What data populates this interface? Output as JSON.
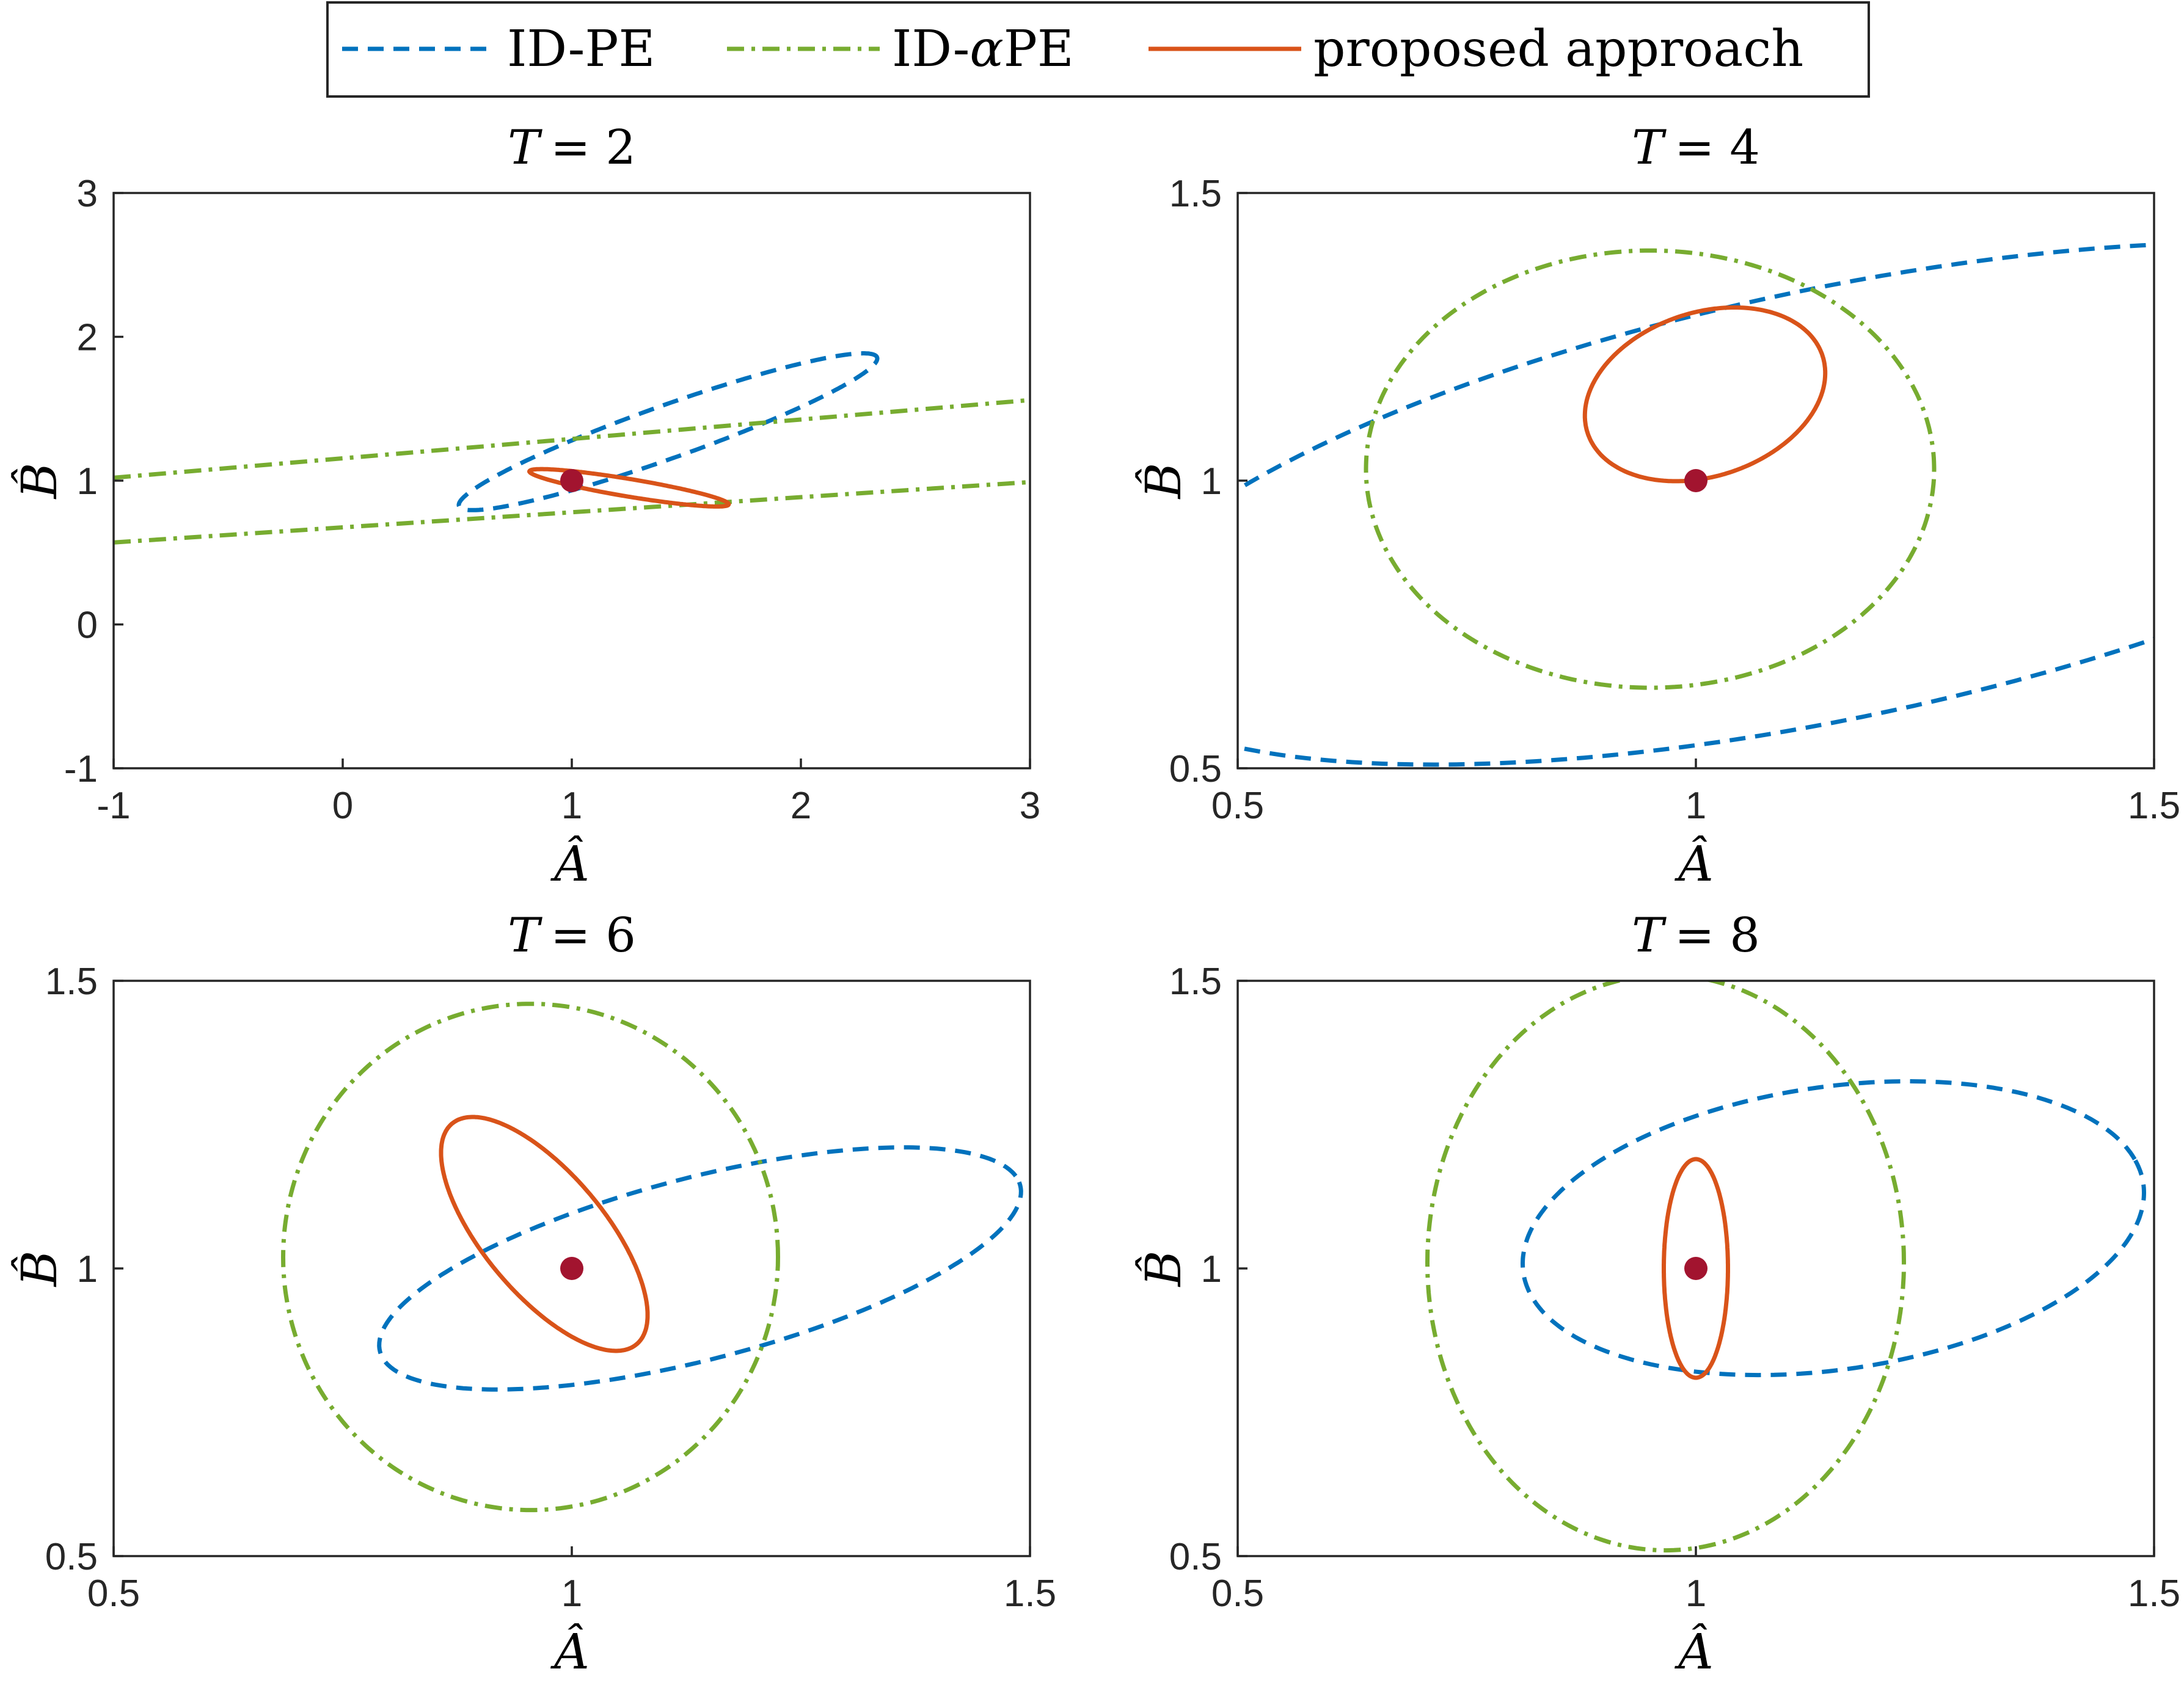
{
  "colors": {
    "id_pe": "#0072BD",
    "id_alpha_pe": "#77AC30",
    "proposed": "#D95319",
    "true_point": "#A2142F",
    "axis": "#262626"
  },
  "legend": {
    "entries": [
      {
        "label": "ID-PE",
        "style": "dashed",
        "color": "#0072BD"
      },
      {
        "label_prefix": "ID-",
        "label_symbol": "α",
        "label_suffix": "PE",
        "style": "dashdot",
        "color": "#77AC30"
      },
      {
        "label": "proposed approach",
        "style": "solid",
        "color": "#D95319"
      }
    ]
  },
  "chart_data": [
    {
      "type": "line",
      "title_var": "T",
      "title_eq": "= 2",
      "xlabel": "Â",
      "ylabel": "B̂",
      "xlim": [
        -1,
        3
      ],
      "ylim": [
        -1,
        3
      ],
      "xticks": [
        -1,
        0,
        1,
        2,
        3
      ],
      "xtick_labels": [
        "-1",
        "0",
        "1",
        "2",
        "3"
      ],
      "yticks": [
        -1,
        0,
        1,
        2,
        3
      ],
      "ytick_labels": [
        "-1",
        "0",
        "1",
        "2",
        "3"
      ],
      "true_point": [
        1,
        1
      ],
      "series": [
        {
          "name": "ID-PE",
          "shape": "ellipse",
          "center": [
            1.42,
            1.34
          ],
          "semi_axes": [
            1.05,
            0.17
          ],
          "angle_deg": 30
        },
        {
          "name": "ID-αPE",
          "shape": "parallel_lines",
          "lines": [
            {
              "y_at_xmin": 1.02,
              "y_at_xmax": 1.56
            },
            {
              "y_at_xmin": 0.57,
              "y_at_xmax": 0.99
            }
          ]
        },
        {
          "name": "proposed approach",
          "shape": "ellipse",
          "center": [
            1.25,
            0.95
          ],
          "semi_axes": [
            0.45,
            0.06
          ],
          "angle_deg": -15
        }
      ]
    },
    {
      "type": "line",
      "title_var": "T",
      "title_eq": "= 4",
      "xlabel": "Â",
      "ylabel": "B̂",
      "xlim": [
        0.5,
        1.5
      ],
      "ylim": [
        0.5,
        1.5
      ],
      "xticks": [
        0.5,
        1,
        1.5
      ],
      "xtick_labels": [
        "0.5",
        "1",
        "1.5"
      ],
      "yticks": [
        0.5,
        1,
        1.5
      ],
      "ytick_labels": [
        "0.5",
        "1",
        "1.5"
      ],
      "true_point": [
        1,
        1
      ],
      "series": [
        {
          "name": "ID-PE",
          "shape": "ellipse",
          "center": [
            1.15,
            0.96
          ],
          "semi_axes": [
            0.85,
            0.36
          ],
          "angle_deg": 21
        },
        {
          "name": "ID-αPE",
          "shape": "ellipse",
          "center": [
            0.95,
            1.02
          ],
          "semi_axes": [
            0.31,
            0.38
          ],
          "angle_deg": 0
        },
        {
          "name": "proposed approach",
          "shape": "ellipse",
          "center": [
            1.01,
            1.15
          ],
          "semi_axes": [
            0.12,
            0.16
          ],
          "angle_deg": -30
        }
      ]
    },
    {
      "type": "line",
      "title_var": "T",
      "title_eq": "= 6",
      "xlabel": "Â",
      "ylabel": "B̂",
      "xlim": [
        0.5,
        1.5
      ],
      "ylim": [
        0.5,
        1.5
      ],
      "xticks": [
        0.5,
        1,
        1.5
      ],
      "xtick_labels": [
        "0.5",
        "1",
        "1.5"
      ],
      "yticks": [
        0.5,
        1,
        1.5
      ],
      "ytick_labels": [
        "0.5",
        "1",
        "1.5"
      ],
      "true_point": [
        1,
        1
      ],
      "series": [
        {
          "name": "ID-PE",
          "shape": "ellipse",
          "center": [
            1.14,
            1.0
          ],
          "semi_axes": [
            0.38,
            0.15
          ],
          "angle_deg": 25
        },
        {
          "name": "ID-αPE",
          "shape": "ellipse",
          "center": [
            0.955,
            1.02
          ],
          "semi_axes": [
            0.27,
            0.44
          ],
          "angle_deg": 0
        },
        {
          "name": "proposed approach",
          "shape": "ellipse",
          "center": [
            0.97,
            1.06
          ],
          "semi_axes": [
            0.075,
            0.22
          ],
          "angle_deg": 24
        }
      ]
    },
    {
      "type": "line",
      "title_var": "T",
      "title_eq": "= 8",
      "xlabel": "Â",
      "ylabel": "B̂",
      "xlim": [
        0.5,
        1.5
      ],
      "ylim": [
        0.5,
        1.5
      ],
      "xticks": [
        0.5,
        1,
        1.5
      ],
      "xtick_labels": [
        "0.5",
        "1",
        "1.5"
      ],
      "yticks": [
        0.5,
        1,
        1.5
      ],
      "ytick_labels": [
        "0.5",
        "1",
        "1.5"
      ],
      "true_point": [
        1,
        1
      ],
      "series": [
        {
          "name": "ID-PE",
          "shape": "ellipse",
          "center": [
            1.15,
            1.07
          ],
          "semi_axes": [
            0.35,
            0.24
          ],
          "angle_deg": 20
        },
        {
          "name": "ID-αPE",
          "shape": "ellipse",
          "center": [
            0.967,
            1.01
          ],
          "semi_axes": [
            0.26,
            0.5
          ],
          "angle_deg": 0
        },
        {
          "name": "proposed approach",
          "shape": "ellipse",
          "center": [
            1.0,
            1.0
          ],
          "semi_axes": [
            0.035,
            0.19
          ],
          "angle_deg": 0
        }
      ]
    }
  ]
}
